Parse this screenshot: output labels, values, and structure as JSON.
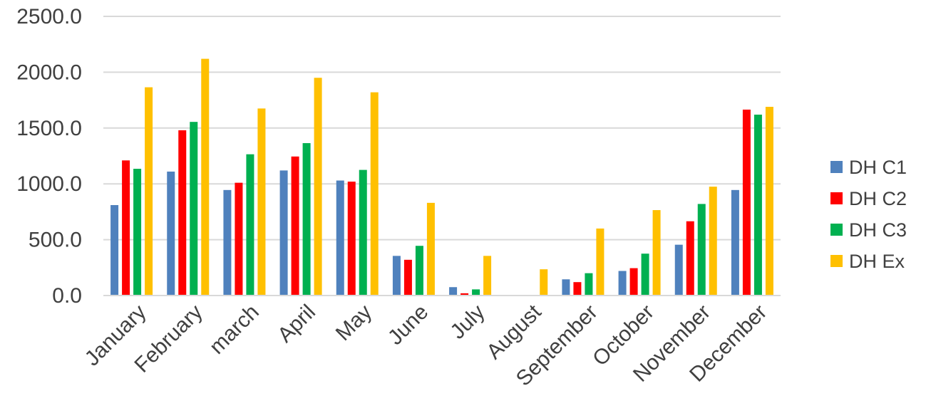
{
  "chart_data": {
    "type": "bar",
    "title": "",
    "xlabel": "",
    "ylabel": "",
    "categories": [
      "January",
      "February",
      "march",
      "April",
      "May",
      "June",
      "July",
      "August",
      "September",
      "October",
      "November",
      "December"
    ],
    "y_ticks": [
      "0.0",
      "500.0",
      "1000.0",
      "1500.0",
      "2000.0",
      "2500.0"
    ],
    "ylim": [
      0,
      2500
    ],
    "grid": true,
    "legend_position": "right",
    "series": [
      {
        "name": "DH C1",
        "color": "#4f81bd",
        "values": [
          810,
          1110,
          945,
          1120,
          1030,
          355,
          75,
          0,
          145,
          220,
          455,
          945
        ]
      },
      {
        "name": "DH C2",
        "color": "#ff0000",
        "values": [
          1210,
          1480,
          1010,
          1245,
          1020,
          320,
          20,
          0,
          120,
          245,
          665,
          1665
        ]
      },
      {
        "name": "DH C3",
        "color": "#00b050",
        "values": [
          1135,
          1555,
          1265,
          1365,
          1125,
          445,
          55,
          0,
          200,
          375,
          820,
          1620
        ]
      },
      {
        "name": "DH Ex",
        "color": "#ffc000",
        "values": [
          1865,
          2120,
          1675,
          1950,
          1820,
          830,
          355,
          235,
          600,
          765,
          975,
          1690
        ]
      }
    ]
  }
}
